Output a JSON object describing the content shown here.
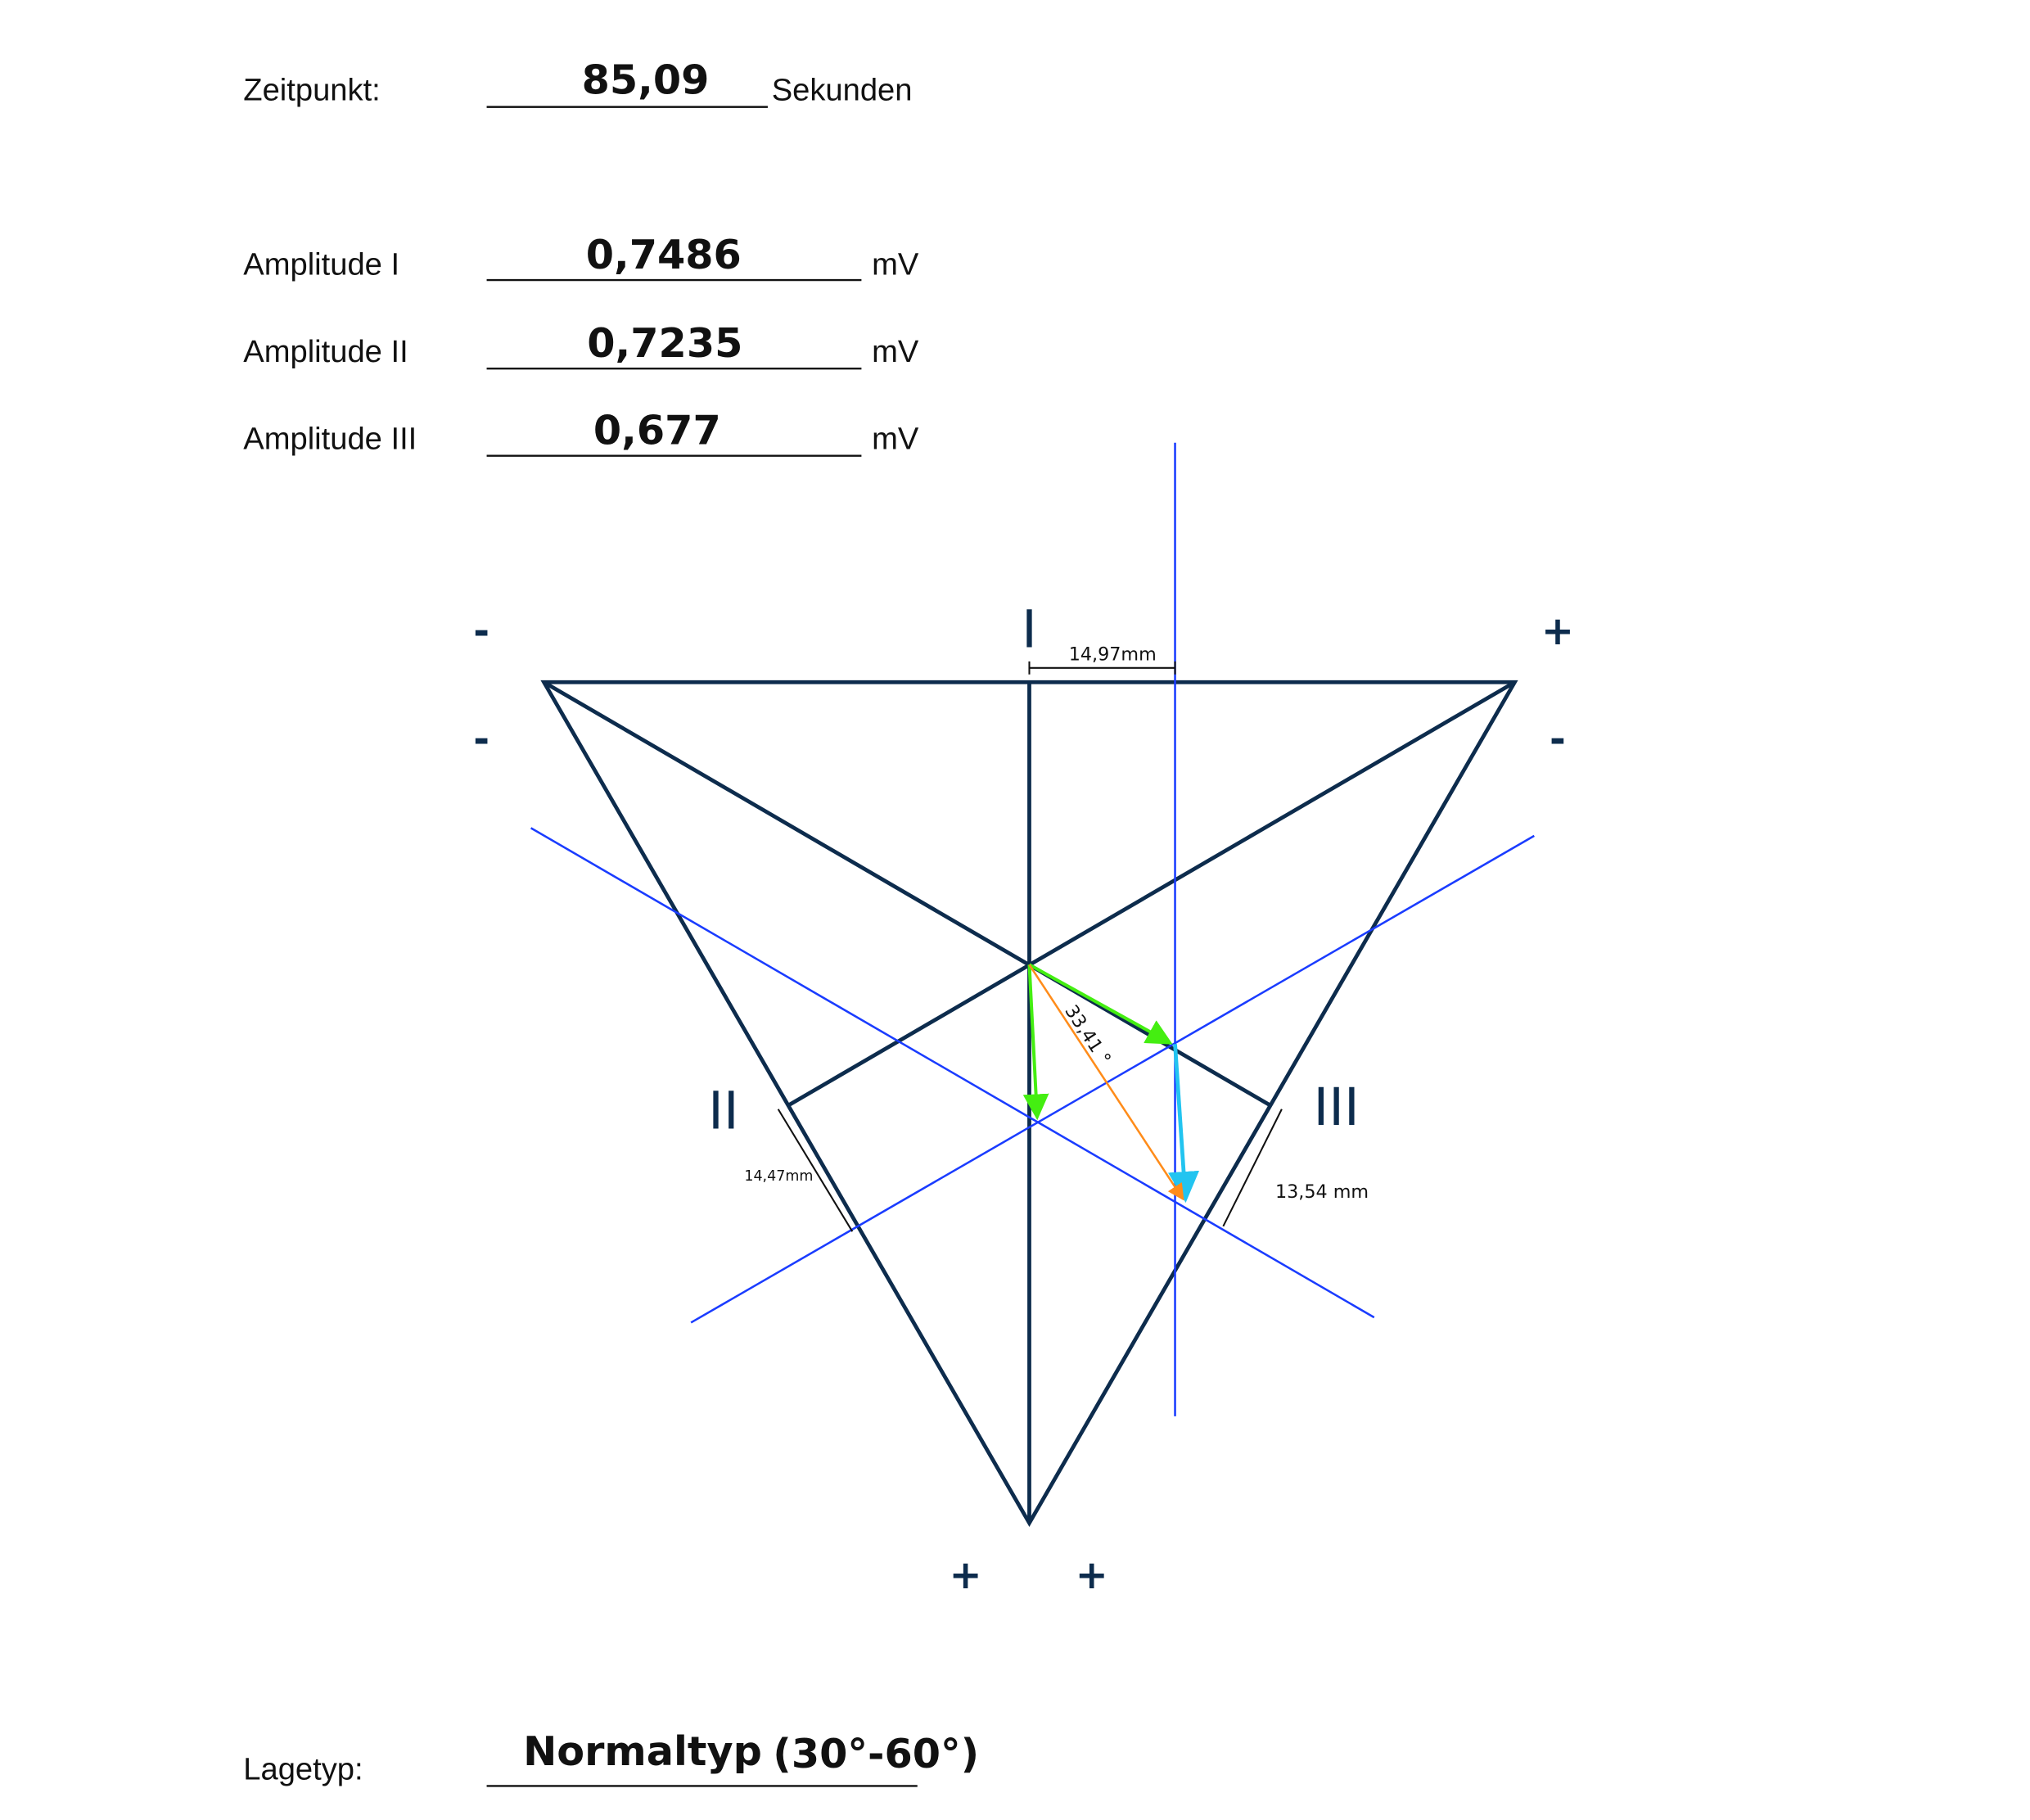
{
  "header": {
    "time_label": "Zeitpunkt:",
    "time_value": "85,09",
    "time_unit": "Sekunden"
  },
  "amplitudes": [
    {
      "label": "Amplitude I",
      "value": "0,7486",
      "unit": "mV"
    },
    {
      "label": "Amplitude II",
      "value": "0,7235",
      "unit": "mV"
    },
    {
      "label": "Amplitude III",
      "value": "0,677",
      "unit": "mV"
    }
  ],
  "diagram": {
    "lead_labels": [
      "I",
      "II",
      "III"
    ],
    "signs": {
      "top_left": "-",
      "top_right": "+",
      "left": "-",
      "right": "-",
      "bottom_left": "+",
      "bottom_right": "+"
    },
    "measurements": {
      "lead_I": "14,97mm",
      "lead_II": "14,47mm",
      "lead_III": "13,54 mm"
    },
    "angle": "33,41 °",
    "colors": {
      "triangle": "#0d2c4d",
      "projection": "#1a3cff",
      "component": "#44ee11",
      "sum": "#22c4f0",
      "axis": "#ff8c1a"
    }
  },
  "footer": {
    "type_label": "Lagetyp:",
    "type_value": "Normaltyp",
    "type_range": "(30°-60°)"
  }
}
